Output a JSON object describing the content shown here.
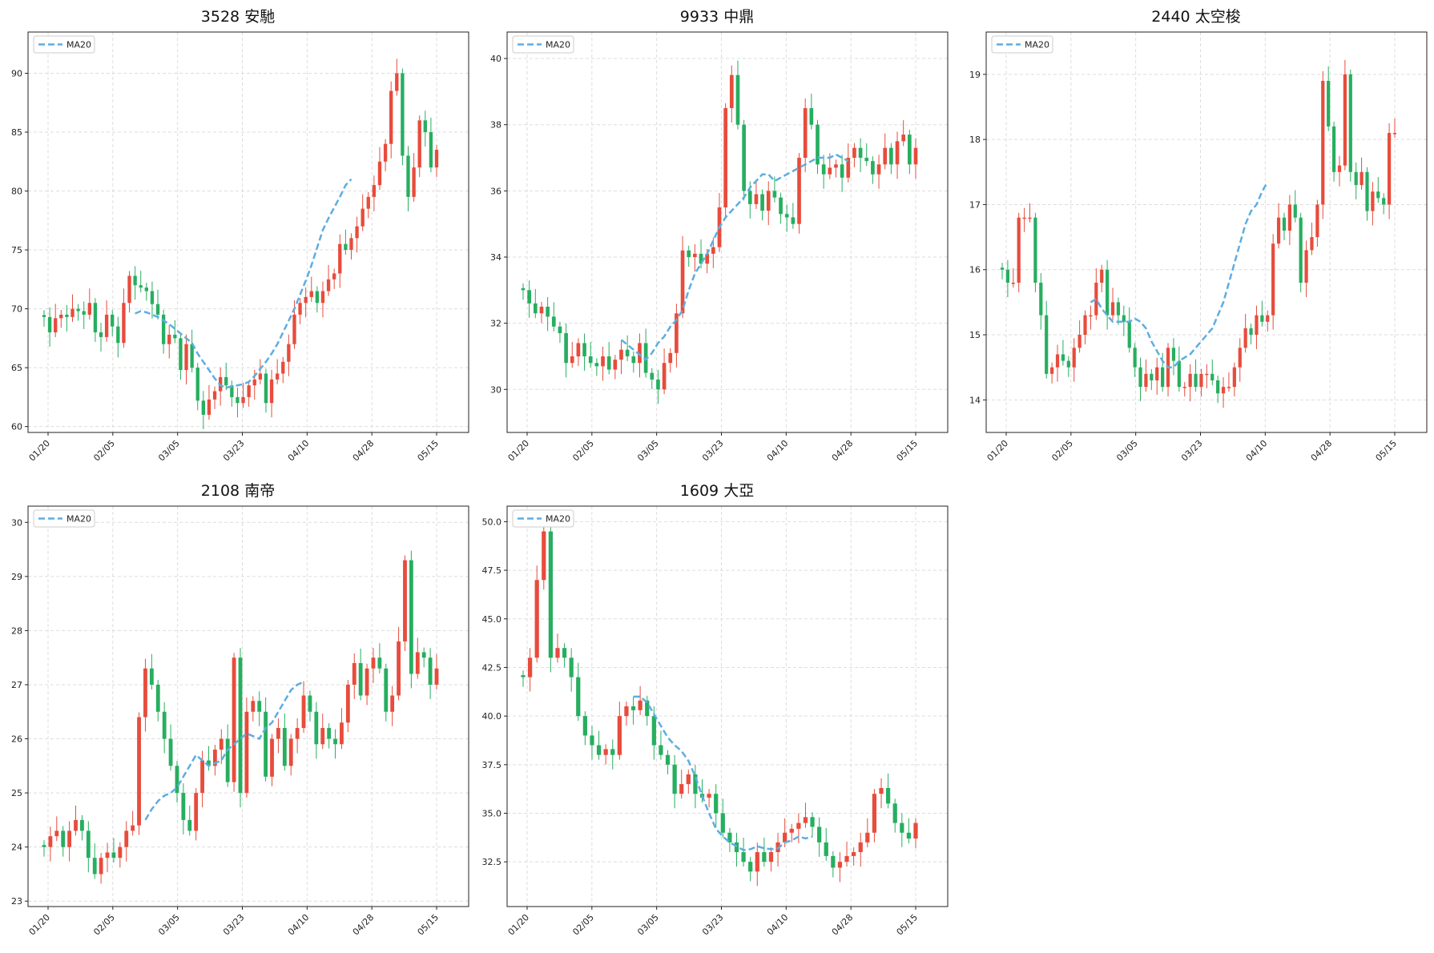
{
  "colors": {
    "up": "#e74c3c",
    "down": "#27ae60",
    "ma": "#5dade2",
    "grid": "#dddddd",
    "frame": "#222222"
  },
  "x_ticks": [
    "01/20",
    "02/05",
    "03/05",
    "03/23",
    "04/10",
    "04/28",
    "05/15"
  ],
  "legend_label": "MA20",
  "chart_data": [
    {
      "type": "candlestick",
      "title": "3528 安馳",
      "ylim": [
        59.5,
        93.5
      ],
      "yticks": [
        60,
        65,
        70,
        75,
        80,
        85,
        90
      ],
      "ytick_labels": [
        "60",
        "65",
        "70",
        "75",
        "80",
        "85",
        "90"
      ],
      "closes": [
        69.3,
        68.0,
        69.2,
        69.5,
        69.3,
        70.0,
        69.8,
        69.5,
        70.5,
        68.0,
        67.6,
        69.5,
        68.5,
        67.1,
        70.5,
        72.8,
        72.0,
        71.8,
        71.5,
        70.4,
        69.5,
        67.0,
        67.8,
        67.5,
        64.8,
        67.0,
        65.0,
        62.2,
        61.0,
        62.3,
        63.0,
        64.2,
        63.5,
        62.5,
        62.0,
        62.5,
        63.5,
        64.0,
        64.5,
        62.0,
        64.0,
        64.5,
        65.5,
        67.0,
        69.5,
        70.5,
        71.0,
        71.5,
        70.5,
        71.5,
        72.5,
        73.0,
        75.5,
        75.0,
        76.0,
        77.0,
        78.5,
        79.5,
        80.5,
        82.5,
        84.0,
        88.5,
        90.0,
        83.0,
        79.5,
        82.0,
        86.0,
        85.0,
        82.0,
        83.5
      ],
      "ma20_start": 16,
      "ma20": [
        69.6,
        69.8,
        69.7,
        69.5,
        69.3,
        69.0,
        68.7,
        68.3,
        67.9,
        67.5,
        67.1,
        66.2,
        65.5,
        64.8,
        64.1,
        63.5,
        63.3,
        63.4,
        63.5,
        63.6,
        63.8,
        64.3,
        64.9,
        65.5,
        66.2,
        67.0,
        68.0,
        69.0,
        70.0,
        71.2,
        72.4,
        73.7,
        75.2,
        76.7,
        77.7,
        78.6,
        79.5,
        80.5,
        81.0
      ]
    },
    {
      "type": "candlestick",
      "title": "9933 中鼎",
      "ylim": [
        28.7,
        40.8
      ],
      "yticks": [
        30,
        32,
        34,
        36,
        38,
        40
      ],
      "ytick_labels": [
        "30",
        "32",
        "34",
        "36",
        "38",
        "40"
      ],
      "closes": [
        33.0,
        32.6,
        32.3,
        32.5,
        32.2,
        31.9,
        31.7,
        30.8,
        31.0,
        31.4,
        31.0,
        30.8,
        30.7,
        31.0,
        30.6,
        30.9,
        31.2,
        31.0,
        30.8,
        31.4,
        30.5,
        30.3,
        30.0,
        30.8,
        31.1,
        32.3,
        34.2,
        34.0,
        34.1,
        33.8,
        34.1,
        34.3,
        35.5,
        38.5,
        39.5,
        38.0,
        36.0,
        35.6,
        35.9,
        35.4,
        36.0,
        35.8,
        35.3,
        35.2,
        35.0,
        37.0,
        38.5,
        38.0,
        36.8,
        36.5,
        36.7,
        36.8,
        36.4,
        37.0,
        37.3,
        37.0,
        36.9,
        36.5,
        36.8,
        37.3,
        36.8,
        37.5,
        37.7,
        36.8,
        37.3
      ],
      "ma20_start": 16,
      "ma20": [
        31.5,
        31.35,
        31.2,
        31.05,
        30.9,
        31.1,
        31.4,
        31.6,
        31.9,
        32.1,
        32.4,
        33.0,
        33.5,
        33.8,
        34.1,
        34.5,
        34.9,
        35.2,
        35.4,
        35.6,
        35.8,
        36.1,
        36.3,
        36.5,
        36.5,
        36.3,
        36.4,
        36.5,
        36.6,
        36.7,
        36.8,
        36.9,
        37.0,
        37.0,
        37.0,
        37.1,
        37.0,
        36.9
      ]
    },
    {
      "type": "candlestick",
      "title": "2440 太空梭",
      "ylim": [
        13.5,
        19.65
      ],
      "yticks": [
        14,
        15,
        16,
        17,
        18,
        19
      ],
      "ytick_labels": [
        "14",
        "15",
        "16",
        "17",
        "18",
        "19"
      ],
      "closes": [
        16.0,
        15.8,
        15.8,
        16.8,
        16.8,
        16.8,
        15.8,
        15.3,
        14.4,
        14.5,
        14.7,
        14.6,
        14.5,
        14.8,
        15.0,
        15.3,
        15.3,
        15.8,
        16.0,
        15.3,
        15.5,
        15.3,
        15.2,
        14.8,
        14.5,
        14.2,
        14.4,
        14.3,
        14.5,
        14.2,
        14.8,
        14.6,
        14.2,
        14.2,
        14.4,
        14.2,
        14.4,
        14.4,
        14.3,
        14.1,
        14.2,
        14.2,
        14.5,
        14.8,
        15.1,
        15.0,
        15.3,
        15.2,
        15.3,
        16.4,
        16.8,
        16.6,
        17.0,
        16.8,
        15.8,
        16.3,
        16.5,
        17.0,
        18.9,
        18.2,
        17.5,
        17.6,
        19.0,
        17.5,
        17.3,
        17.5,
        16.9,
        17.2,
        17.1,
        17.0,
        18.1,
        18.1
      ],
      "ma20_start": 16,
      "ma20": [
        15.5,
        15.55,
        15.4,
        15.3,
        15.2,
        15.2,
        15.2,
        15.2,
        15.25,
        15.2,
        15.1,
        14.9,
        14.75,
        14.6,
        14.5,
        14.5,
        14.6,
        14.65,
        14.7,
        14.8,
        14.9,
        15.0,
        15.1,
        15.3,
        15.5,
        15.8,
        16.1,
        16.4,
        16.7,
        16.9,
        17.0,
        17.2,
        17.35
      ]
    },
    {
      "type": "candlestick",
      "title": "2108 南帝",
      "ylim": [
        22.9,
        30.3
      ],
      "yticks": [
        23,
        24,
        25,
        26,
        27,
        28,
        29,
        30
      ],
      "ytick_labels": [
        "23",
        "24",
        "25",
        "26",
        "27",
        "28",
        "29",
        "30"
      ],
      "closes": [
        24.0,
        24.2,
        24.3,
        24.0,
        24.3,
        24.5,
        24.3,
        23.8,
        23.5,
        23.8,
        23.9,
        23.8,
        24.0,
        24.3,
        24.4,
        26.4,
        27.3,
        27.0,
        26.5,
        26.0,
        25.5,
        25.0,
        24.5,
        24.3,
        25.0,
        25.6,
        25.5,
        25.8,
        26.0,
        25.2,
        27.5,
        25.0,
        26.5,
        26.7,
        26.5,
        25.3,
        26.0,
        26.2,
        25.5,
        26.0,
        26.2,
        26.8,
        26.5,
        25.9,
        26.2,
        26.0,
        25.9,
        26.3,
        27.0,
        27.4,
        26.8,
        27.3,
        27.5,
        27.3,
        26.5,
        26.8,
        27.8,
        29.3,
        27.2,
        27.6,
        27.5,
        27.0,
        27.3
      ],
      "ma20_start": 16,
      "ma20": [
        24.5,
        24.7,
        24.85,
        24.95,
        25.0,
        25.1,
        25.3,
        25.5,
        25.7,
        25.6,
        25.5,
        25.55,
        25.6,
        25.8,
        25.9,
        26.0,
        26.1,
        26.05,
        26.0,
        26.2,
        26.3,
        26.5,
        26.7,
        26.9,
        27.0,
        27.05
      ]
    },
    {
      "type": "candlestick",
      "title": "1609 大亞",
      "ylim": [
        30.2,
        50.8
      ],
      "yticks": [
        32.5,
        35.0,
        37.5,
        40.0,
        42.5,
        45.0,
        47.5,
        50.0
      ],
      "ytick_labels": [
        "32.5",
        "35.0",
        "37.5",
        "40.0",
        "42.5",
        "45.0",
        "47.5",
        "50.0"
      ],
      "closes": [
        42.0,
        43.0,
        47.0,
        49.5,
        43.0,
        43.5,
        43.0,
        42.0,
        40.0,
        39.0,
        38.5,
        38.0,
        38.3,
        38.0,
        40.0,
        40.5,
        40.3,
        40.8,
        40.0,
        38.5,
        38.0,
        37.5,
        36.0,
        36.5,
        37.0,
        36.0,
        35.8,
        36.0,
        35.0,
        34.0,
        33.5,
        33.0,
        32.5,
        32.0,
        33.0,
        32.5,
        33.0,
        33.5,
        34.0,
        34.2,
        34.5,
        34.8,
        34.3,
        33.5,
        32.8,
        32.2,
        32.5,
        32.8,
        33.0,
        33.5,
        34.0,
        36.0,
        36.3,
        35.5,
        34.5,
        34.0,
        33.7,
        34.5
      ],
      "ma20_start": 16,
      "ma20": [
        41.0,
        41.0,
        40.7,
        40.1,
        39.5,
        38.9,
        38.5,
        38.2,
        37.7,
        36.9,
        35.9,
        35.0,
        34.2,
        33.8,
        33.5,
        33.3,
        33.1,
        33.15,
        33.3,
        33.2,
        33.15,
        33.2,
        33.5,
        33.6,
        33.8,
        33.7,
        33.8
      ]
    }
  ]
}
